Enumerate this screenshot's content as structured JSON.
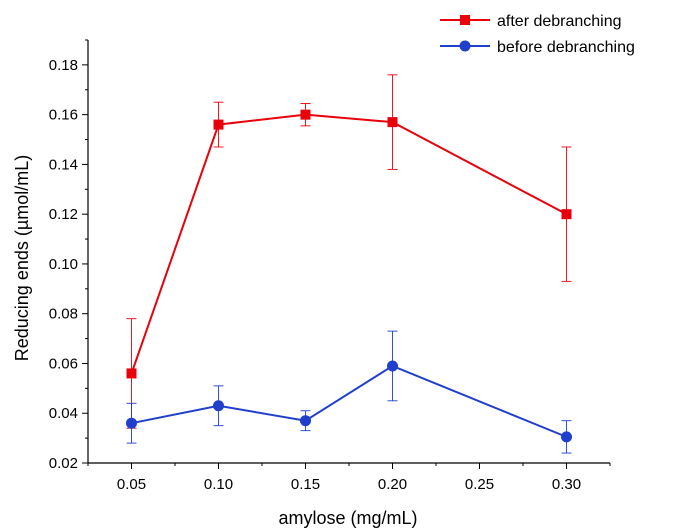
{
  "chart_data": {
    "type": "line",
    "xlabel": "amylose (mg/mL)",
    "ylabel": "Reducing ends (µmol/mL)",
    "xlim": [
      0.025,
      0.325
    ],
    "ylim": [
      0.02,
      0.19
    ],
    "x_ticks": [
      "0.05",
      "0.10",
      "0.15",
      "0.20",
      "0.25",
      "0.30"
    ],
    "x_tick_values": [
      0.05,
      0.1,
      0.15,
      0.2,
      0.25,
      0.3
    ],
    "y_ticks": [
      "0.02",
      "0.04",
      "0.06",
      "0.08",
      "0.10",
      "0.12",
      "0.14",
      "0.16",
      "0.18"
    ],
    "y_tick_values": [
      0.02,
      0.04,
      0.06,
      0.08,
      0.1,
      0.12,
      0.14,
      0.16,
      0.18
    ],
    "grid": false,
    "legend_position": "top-right",
    "series": [
      {
        "name": "after debranching",
        "color": "#e8000b",
        "marker": "square",
        "x": [
          0.05,
          0.1,
          0.15,
          0.2,
          0.3
        ],
        "y": [
          0.056,
          0.156,
          0.16,
          0.157,
          0.12
        ],
        "yerr": [
          0.022,
          0.009,
          0.0045,
          0.019,
          0.027
        ]
      },
      {
        "name": "before debranching",
        "color": "#1f3fcc",
        "marker": "circle",
        "x": [
          0.05,
          0.1,
          0.15,
          0.2,
          0.3
        ],
        "y": [
          0.036,
          0.043,
          0.037,
          0.059,
          0.0305
        ],
        "yerr": [
          0.008,
          0.008,
          0.004,
          0.014,
          0.0065
        ]
      }
    ]
  }
}
